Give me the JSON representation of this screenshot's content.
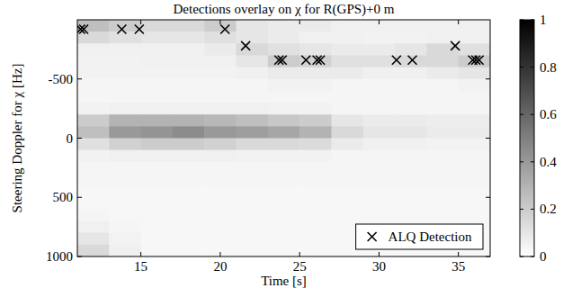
{
  "chart_data": {
    "type": "heatmap",
    "title": "Detections overlay on χ for R(GPS)+0 m",
    "x_label": "Time [s]",
    "y_label": "Steering Doppler for χ [Hz]",
    "xlim": [
      11,
      37
    ],
    "ylim": [
      1000,
      -1000
    ],
    "xticks": [
      15,
      20,
      25,
      30,
      35
    ],
    "yticks": [
      -500,
      0,
      500,
      1000
    ],
    "heatmap": {
      "x_edges": [
        11,
        13,
        15,
        17,
        19,
        21,
        23,
        25,
        27,
        29,
        31,
        33,
        35,
        37
      ],
      "y_edges": [
        -1000,
        -900,
        -800,
        -700,
        -600,
        -500,
        -400,
        -300,
        -200,
        -100,
        0,
        100,
        200,
        300,
        400,
        500,
        600,
        700,
        800,
        900,
        1000
      ],
      "z": [
        [
          0.25,
          0.2,
          0.15,
          0.15,
          0.2,
          0.1,
          0.08,
          0.08,
          0.06,
          0.06,
          0.06,
          0.06,
          0.06
        ],
        [
          0.15,
          0.12,
          0.1,
          0.1,
          0.12,
          0.1,
          0.08,
          0.06,
          0.06,
          0.05,
          0.05,
          0.06,
          0.06
        ],
        [
          0.06,
          0.06,
          0.06,
          0.06,
          0.08,
          0.15,
          0.12,
          0.1,
          0.08,
          0.08,
          0.1,
          0.15,
          0.12
        ],
        [
          0.05,
          0.05,
          0.06,
          0.06,
          0.06,
          0.1,
          0.2,
          0.18,
          0.12,
          0.12,
          0.15,
          0.15,
          0.2
        ],
        [
          0.05,
          0.05,
          0.05,
          0.05,
          0.05,
          0.06,
          0.08,
          0.08,
          0.08,
          0.06,
          0.06,
          0.08,
          0.1
        ],
        [
          0.04,
          0.04,
          0.04,
          0.04,
          0.04,
          0.04,
          0.05,
          0.05,
          0.04,
          0.04,
          0.04,
          0.04,
          0.05
        ],
        [
          0.04,
          0.04,
          0.04,
          0.04,
          0.04,
          0.04,
          0.04,
          0.04,
          0.04,
          0.04,
          0.04,
          0.04,
          0.04
        ],
        [
          0.05,
          0.06,
          0.06,
          0.06,
          0.06,
          0.06,
          0.05,
          0.05,
          0.04,
          0.04,
          0.04,
          0.04,
          0.04
        ],
        [
          0.2,
          0.3,
          0.3,
          0.3,
          0.28,
          0.25,
          0.22,
          0.2,
          0.1,
          0.08,
          0.08,
          0.07,
          0.07
        ],
        [
          0.25,
          0.4,
          0.42,
          0.45,
          0.4,
          0.38,
          0.35,
          0.3,
          0.15,
          0.1,
          0.1,
          0.08,
          0.08
        ],
        [
          0.12,
          0.18,
          0.2,
          0.2,
          0.18,
          0.15,
          0.15,
          0.14,
          0.08,
          0.06,
          0.06,
          0.05,
          0.05
        ],
        [
          0.05,
          0.06,
          0.06,
          0.06,
          0.06,
          0.05,
          0.05,
          0.05,
          0.04,
          0.04,
          0.04,
          0.04,
          0.04
        ],
        [
          0.04,
          0.04,
          0.04,
          0.04,
          0.04,
          0.04,
          0.04,
          0.04,
          0.04,
          0.04,
          0.04,
          0.04,
          0.04
        ],
        [
          0.04,
          0.04,
          0.04,
          0.04,
          0.04,
          0.04,
          0.04,
          0.04,
          0.04,
          0.04,
          0.04,
          0.04,
          0.04
        ],
        [
          0.03,
          0.03,
          0.03,
          0.03,
          0.03,
          0.03,
          0.03,
          0.03,
          0.03,
          0.03,
          0.03,
          0.03,
          0.03
        ],
        [
          0.03,
          0.03,
          0.03,
          0.03,
          0.03,
          0.03,
          0.03,
          0.03,
          0.03,
          0.03,
          0.03,
          0.03,
          0.03
        ],
        [
          0.04,
          0.03,
          0.03,
          0.03,
          0.03,
          0.03,
          0.03,
          0.03,
          0.03,
          0.03,
          0.03,
          0.03,
          0.03
        ],
        [
          0.06,
          0.04,
          0.03,
          0.03,
          0.03,
          0.03,
          0.03,
          0.03,
          0.03,
          0.03,
          0.03,
          0.03,
          0.03
        ],
        [
          0.1,
          0.05,
          0.03,
          0.03,
          0.03,
          0.03,
          0.03,
          0.03,
          0.03,
          0.03,
          0.03,
          0.03,
          0.03
        ],
        [
          0.15,
          0.06,
          0.03,
          0.03,
          0.03,
          0.03,
          0.03,
          0.03,
          0.03,
          0.03,
          0.03,
          0.03,
          0.03
        ]
      ]
    },
    "colorbar": {
      "range": [
        0,
        1
      ],
      "ticks": [
        0,
        0.2,
        0.4,
        0.6,
        0.8,
        1
      ]
    },
    "series": [
      {
        "name": "ALQ Detection",
        "type": "scatter",
        "marker": "x",
        "color": "#000000",
        "x": [
          11.2,
          11.4,
          13.8,
          14.9,
          20.3,
          21.6,
          23.7,
          23.9,
          25.4,
          26.1,
          26.3,
          31.1,
          32.1,
          34.8,
          35.9,
          36.1,
          36.3
        ],
        "values": [
          -920,
          -920,
          -920,
          -920,
          -920,
          -780,
          -660,
          -660,
          -660,
          -660,
          -660,
          -660,
          -660,
          -780,
          -660,
          -660,
          -660
        ]
      }
    ],
    "legend": "southeast"
  }
}
